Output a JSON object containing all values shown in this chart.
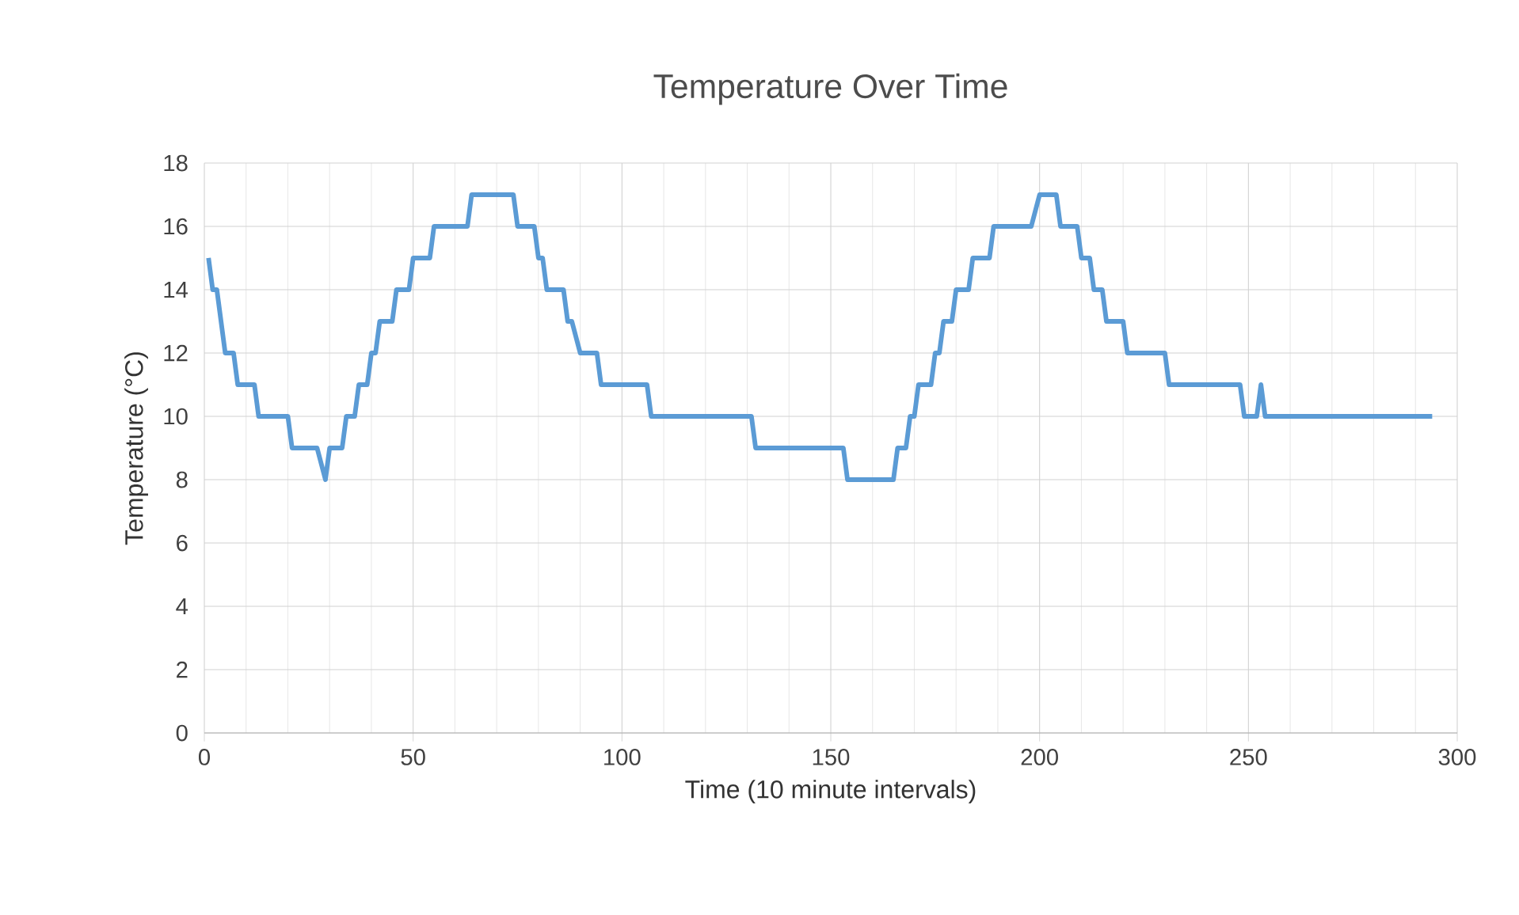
{
  "chart_data": {
    "type": "line",
    "title": "Temperature Over Time",
    "xlabel": "Time (10 minute intervals)",
    "ylabel": "Temperature (°C)",
    "xlim": [
      0,
      300
    ],
    "xticks": [
      0,
      50,
      100,
      150,
      200,
      250,
      300
    ],
    "ylim": [
      0,
      18
    ],
    "yticks": [
      0,
      2,
      4,
      6,
      8,
      10,
      12,
      14,
      16,
      18
    ],
    "grid": true,
    "series": [
      {
        "color": "#5b9bd5",
        "x": [
          1,
          2,
          3,
          5,
          7,
          8,
          12,
          13,
          20,
          21,
          27,
          29,
          30,
          33,
          34,
          36,
          37,
          39,
          40,
          41,
          42,
          45,
          46,
          49,
          50,
          54,
          55,
          63,
          64,
          74,
          75,
          79,
          80,
          81,
          82,
          86,
          87,
          88,
          90,
          94,
          95,
          106,
          107,
          131,
          132,
          153,
          154,
          165,
          166,
          168,
          169,
          170,
          171,
          174,
          175,
          176,
          177,
          179,
          180,
          183,
          184,
          188,
          189,
          198,
          200,
          204,
          205,
          209,
          210,
          212,
          213,
          215,
          216,
          220,
          221,
          230,
          231,
          248,
          249,
          252,
          253,
          254,
          294
        ],
        "values": [
          15,
          14,
          14,
          12,
          12,
          11,
          11,
          10,
          10,
          9,
          9,
          8,
          9,
          9,
          10,
          10,
          11,
          11,
          12,
          12,
          13,
          13,
          14,
          14,
          15,
          15,
          16,
          16,
          17,
          17,
          16,
          16,
          15,
          15,
          14,
          14,
          13,
          13,
          12,
          12,
          11,
          11,
          10,
          10,
          9,
          9,
          8,
          8,
          9,
          9,
          10,
          10,
          11,
          11,
          12,
          12,
          13,
          13,
          14,
          14,
          15,
          15,
          16,
          16,
          17,
          17,
          16,
          16,
          15,
          15,
          14,
          14,
          13,
          13,
          12,
          12,
          11,
          11,
          10,
          10,
          11,
          10,
          10
        ]
      }
    ]
  }
}
